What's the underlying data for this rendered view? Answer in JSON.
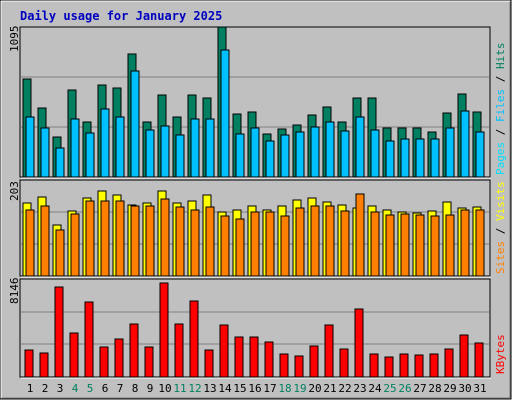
{
  "title": "Daily usage for January 2025",
  "colors": {
    "background": "#c0c0c0",
    "title": "#0000c0",
    "hits": "#008060",
    "files": "#00c0ff",
    "pages": "#00e0ff",
    "sites": "#ff8000",
    "visits": "#ffff00",
    "kbytes": "#ff0000",
    "weekend": "#008060",
    "weekday": "#000000"
  },
  "panels": {
    "top": {
      "max_label": "1095",
      "legend": [
        "Pages",
        "Files",
        "Hits"
      ]
    },
    "mid": {
      "max_label": "203",
      "legend": [
        "Sites",
        "Visits"
      ]
    },
    "bot": {
      "max_label": "8146",
      "legend": [
        "KBytes"
      ]
    }
  },
  "chart_data": {
    "type": "bar",
    "title": "Daily usage for January 2025",
    "categories": [
      "1",
      "2",
      "3",
      "4",
      "5",
      "6",
      "7",
      "8",
      "9",
      "10",
      "11",
      "12",
      "13",
      "14",
      "15",
      "16",
      "17",
      "18",
      "19",
      "20",
      "21",
      "22",
      "23",
      "24",
      "25",
      "26",
      "27",
      "28",
      "29",
      "30",
      "31"
    ],
    "weekend_days": [
      "4",
      "5",
      "11",
      "12",
      "18",
      "19",
      "25",
      "26"
    ],
    "panels": [
      {
        "name": "top",
        "ylim": [
          0,
          1095
        ],
        "series": [
          {
            "name": "Hits",
            "values": [
              715,
              505,
              290,
              635,
              400,
              675,
              650,
              895,
              405,
              600,
              440,
              600,
              580,
              1095,
              460,
              475,
              315,
              350,
              380,
              450,
              510,
              405,
              575,
              575,
              355,
              355,
              355,
              330,
              470,
              605,
              475
            ]
          },
          {
            "name": "Files",
            "values": [
              435,
              355,
              215,
              420,
              320,
              500,
              440,
              775,
              340,
              375,
              310,
              420,
              425,
              925,
              315,
              360,
              260,
              310,
              325,
              365,
              405,
              335,
              435,
              345,
              260,
              275,
              275,
              275,
              355,
              485,
              330
            ]
          }
        ]
      },
      {
        "name": "mid",
        "ylim": [
          0,
          203
        ],
        "series": [
          {
            "name": "Visits",
            "values": [
              154,
              166,
              108,
              138,
              164,
              179,
              172,
              150,
              155,
              179,
              155,
              159,
              172,
              135,
              139,
              148,
              140,
              148,
              160,
              165,
              156,
              150,
              144,
              149,
              140,
              135,
              133,
              137,
              157,
              144,
              145
            ]
          },
          {
            "name": "Sites",
            "values": [
              140,
              147,
              98,
              131,
              159,
              158,
              159,
              147,
              147,
              162,
              145,
              139,
              146,
              127,
              120,
              135,
              135,
              127,
              144,
              148,
              148,
              137,
              174,
              136,
              128,
              131,
              128,
              127,
              128,
              140,
              139
            ]
          }
        ]
      },
      {
        "name": "bot",
        "ylim": [
          0,
          8146
        ],
        "series": [
          {
            "name": "KBytes",
            "values": [
              2280,
              2030,
              7490,
              3620,
              6260,
              2510,
              3200,
              4400,
              2530,
              7850,
              4440,
              6350,
              2250,
              4310,
              3290,
              3300,
              2940,
              1920,
              1740,
              2550,
              4330,
              2360,
              5640,
              1890,
              1650,
              1880,
              1860,
              1910,
              2330,
              3450,
              2830
            ]
          }
        ]
      }
    ]
  }
}
